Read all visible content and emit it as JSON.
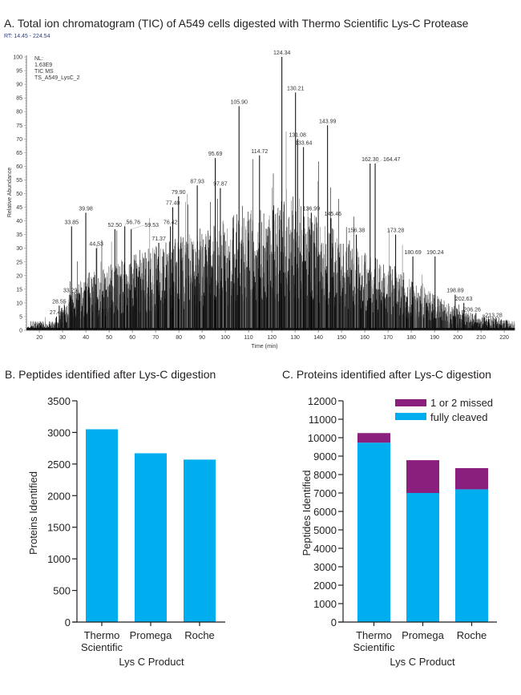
{
  "chart_data": [
    {
      "type": "line",
      "title": "A. Total ion chromatogram (TIC) of A549 cells digested with Thermo Scientific Lys-C Protease",
      "rt_range": "RT: 14.45 - 224.54",
      "info": [
        "NL:",
        "1.63E9",
        "TIC  MS",
        "TS_A549_LysC_2"
      ],
      "xlabel": "Time (min)",
      "ylabel": "Relative Abundance",
      "xlim": [
        14.45,
        224.54
      ],
      "ylim": [
        0,
        100
      ],
      "xticks": [
        20,
        30,
        40,
        50,
        60,
        70,
        80,
        90,
        100,
        110,
        120,
        130,
        140,
        150,
        160,
        170,
        180,
        190,
        200,
        210,
        220
      ],
      "yticks": [
        0,
        5,
        10,
        15,
        20,
        25,
        30,
        35,
        40,
        45,
        50,
        55,
        60,
        65,
        70,
        75,
        80,
        85,
        90,
        95,
        100
      ],
      "colors": {
        "trace": "#000000",
        "rt_text": "#2b3a8f"
      },
      "labeled_peaks": [
        {
          "x": 27.4,
          "y": 5,
          "label": "27.40"
        },
        {
          "x": 28.55,
          "y": 9,
          "label": "28.55"
        },
        {
          "x": 33.29,
          "y": 13,
          "label": "33.29"
        },
        {
          "x": 33.85,
          "y": 38,
          "label": "33.85"
        },
        {
          "x": 39.98,
          "y": 43,
          "label": "39.98"
        },
        {
          "x": 44.53,
          "y": 30,
          "label": "44.53"
        },
        {
          "x": 52.5,
          "y": 37,
          "label": "52.50"
        },
        {
          "x": 56.76,
          "y": 38,
          "label": "56.76"
        },
        {
          "x": 59.53,
          "y": 37,
          "label": "59.53"
        },
        {
          "x": 71.37,
          "y": 32,
          "label": "71.37"
        },
        {
          "x": 76.42,
          "y": 38,
          "label": "76.42"
        },
        {
          "x": 77.4,
          "y": 45,
          "label": "77.40"
        },
        {
          "x": 79.9,
          "y": 49,
          "label": "79.90"
        },
        {
          "x": 87.93,
          "y": 53,
          "label": "87.93"
        },
        {
          "x": 95.69,
          "y": 63,
          "label": "95.69"
        },
        {
          "x": 97.87,
          "y": 52,
          "label": "97.87"
        },
        {
          "x": 105.9,
          "y": 82,
          "label": "105.90"
        },
        {
          "x": 114.72,
          "y": 64,
          "label": "114.72"
        },
        {
          "x": 124.34,
          "y": 100,
          "label": "124.34"
        },
        {
          "x": 130.21,
          "y": 87,
          "label": "130.21"
        },
        {
          "x": 131.08,
          "y": 70,
          "label": "131.08"
        },
        {
          "x": 133.64,
          "y": 67,
          "label": "133.64"
        },
        {
          "x": 136.99,
          "y": 43,
          "label": "136.99"
        },
        {
          "x": 143.99,
          "y": 75,
          "label": "143.99"
        },
        {
          "x": 145.46,
          "y": 41,
          "label": "145.46"
        },
        {
          "x": 156.38,
          "y": 35,
          "label": "156.38"
        },
        {
          "x": 162.3,
          "y": 61,
          "label": "162.30"
        },
        {
          "x": 164.47,
          "y": 61,
          "label": "164.47"
        },
        {
          "x": 173.28,
          "y": 35,
          "label": "173.28"
        },
        {
          "x": 180.69,
          "y": 27,
          "label": "180.69"
        },
        {
          "x": 190.24,
          "y": 27,
          "label": "190.24"
        },
        {
          "x": 198.89,
          "y": 13,
          "label": "198.89"
        },
        {
          "x": 202.63,
          "y": 10,
          "label": "202.63"
        },
        {
          "x": 206.26,
          "y": 6,
          "label": "206.26"
        },
        {
          "x": 213.28,
          "y": 4,
          "label": "213.28"
        }
      ]
    },
    {
      "type": "bar",
      "title": "B. Peptides identified after Lys-C digestion",
      "xlabel": "Lys C Product",
      "ylabel": "Proteins Identified",
      "categories": [
        [
          "Thermo",
          "Scientific"
        ],
        [
          "Promega"
        ],
        [
          "Roche"
        ]
      ],
      "values": [
        3050,
        2670,
        2570
      ],
      "ylim": [
        0,
        3500
      ],
      "yticks": [
        0,
        500,
        1000,
        1500,
        2000,
        2500,
        3000,
        3500
      ],
      "colors": {
        "bar": "#00aeef"
      }
    },
    {
      "type": "bar",
      "stacked": true,
      "title": "C. Proteins identified after Lys-C digestion",
      "xlabel": "Lys C Product",
      "ylabel": "Peptides Identified",
      "categories": [
        [
          "Thermo",
          "Scientific"
        ],
        [
          "Promega"
        ],
        [
          "Roche"
        ]
      ],
      "series": [
        {
          "name": "fully cleaved",
          "values": [
            9730,
            7000,
            7200
          ],
          "color": "#00aeef"
        },
        {
          "name": "1 or 2 missed",
          "values": [
            520,
            1780,
            1150
          ],
          "color": "#8b1f7d"
        }
      ],
      "legend": "top-right",
      "ylim": [
        0,
        12000
      ],
      "yticks": [
        0,
        1000,
        2000,
        3000,
        4000,
        5000,
        6000,
        7000,
        8000,
        9000,
        10000,
        11000,
        12000
      ]
    }
  ]
}
